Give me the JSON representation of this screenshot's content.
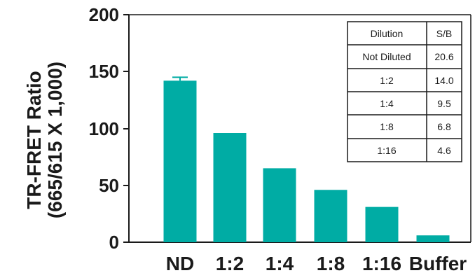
{
  "chart_data": {
    "type": "bar",
    "categories": [
      "ND",
      "1:2",
      "1:4",
      "1:8",
      "1:16",
      "Buffer"
    ],
    "values": [
      142,
      96,
      65,
      46,
      31,
      6
    ],
    "error": [
      3,
      0,
      0,
      0,
      0,
      0
    ],
    "bar_color": "#00ACA4",
    "ylabel_line1": "TR-FRET Ratio",
    "ylabel_line2": "(665/615 X 1,000)",
    "ylim": [
      0,
      200
    ],
    "yticks": [
      "0",
      "50",
      "100",
      "150",
      "200"
    ],
    "table": {
      "headers": [
        "Dilution",
        "S/B"
      ],
      "rows": [
        [
          "Not Diluted",
          "20.6"
        ],
        [
          "1:2",
          "14.0"
        ],
        [
          "1:4",
          "9.5"
        ],
        [
          "1:8",
          "6.8"
        ],
        [
          "1:16",
          "4.6"
        ]
      ]
    }
  }
}
